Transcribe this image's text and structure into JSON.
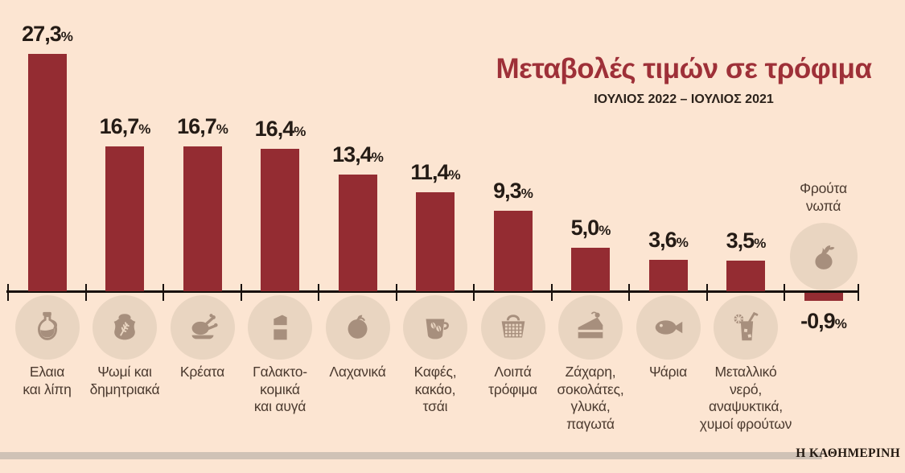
{
  "brand": "Η ΚΑΘΗΜΕΡΙΝΗ",
  "colors": {
    "background": "#fce5d2",
    "bar": "#942c32",
    "title": "#9e3038",
    "subtitle": "#2b211a",
    "value_text": "#241b15",
    "axis": "#18100c",
    "category_text": "#4b3a2f",
    "icon_circle": "#e9d5c1",
    "icon_glyph": "#a78f7d",
    "footer_rule": "#cfc2b6",
    "brand_text": "#241a12"
  },
  "chart_data": {
    "type": "bar",
    "title": "Μεταβολές τιμών σε τρόφιμα",
    "subtitle": "ΙΟΥΛΙΟΣ 2022 – ΙΟΥΛΙΟΣ 2021",
    "unit": "%",
    "ylim": [
      -2,
      30
    ],
    "grid": false,
    "legend": false,
    "categories": [
      "Ελαια και λίπη",
      "Ψωμί και δημητριακά",
      "Κρέατα",
      "Γαλακτοκομικά και αυγά",
      "Λαχανικά",
      "Καφές, κακάο, τσάι",
      "Λοιπά τρόφιμα",
      "Ζάχαρη, σοκολάτες, γλυκά, παγωτά",
      "Ψάρια",
      "Μεταλλικό νερό, αναψυκτικά, χυμοί φρούτων",
      "Φρούτα νωπά"
    ],
    "values": [
      27.3,
      16.7,
      16.7,
      16.4,
      13.4,
      11.4,
      9.3,
      5.0,
      3.6,
      3.5,
      -0.9
    ],
    "points": [
      {
        "label_lines": [
          "Ελαια",
          "και λίπη"
        ],
        "value": 27.3,
        "value_label": "27,3",
        "icon": "oil-bottle-icon"
      },
      {
        "label_lines": [
          "Ψωμί και",
          "δημητριακά"
        ],
        "value": 16.7,
        "value_label": "16,7",
        "icon": "grain-sack-icon"
      },
      {
        "label_lines": [
          "Κρέατα"
        ],
        "value": 16.7,
        "value_label": "16,7",
        "icon": "poultry-icon"
      },
      {
        "label_lines": [
          "Γαλακτο-",
          "κομικά",
          "και αυγά"
        ],
        "value": 16.4,
        "value_label": "16,4",
        "icon": "milk-carton-icon"
      },
      {
        "label_lines": [
          "Λαχανικά"
        ],
        "value": 13.4,
        "value_label": "13,4",
        "icon": "tomato-icon"
      },
      {
        "label_lines": [
          "Καφές,",
          "κακάο,",
          "τσάι"
        ],
        "value": 11.4,
        "value_label": "11,4",
        "icon": "coffee-cup-icon"
      },
      {
        "label_lines": [
          "Λοιπά",
          "τρόφιμα"
        ],
        "value": 9.3,
        "value_label": "9,3",
        "icon": "shopping-basket-icon"
      },
      {
        "label_lines": [
          "Ζάχαρη,",
          "σοκολάτες,",
          "γλυκά,",
          "παγωτά"
        ],
        "value": 5.0,
        "value_label": "5,0",
        "icon": "cake-slice-icon"
      },
      {
        "label_lines": [
          "Ψάρια"
        ],
        "value": 3.6,
        "value_label": "3,6",
        "icon": "fish-icon"
      },
      {
        "label_lines": [
          "Μεταλλικό",
          "νερό,",
          "αναψυκτικά,",
          "χυμοί φρούτων"
        ],
        "value": 3.5,
        "value_label": "3,5",
        "icon": "soft-drink-icon"
      },
      {
        "label_lines": [
          "Φρούτα",
          "νωπά"
        ],
        "value": -0.9,
        "value_label": "-0,9",
        "icon": "pear-icon"
      }
    ]
  }
}
